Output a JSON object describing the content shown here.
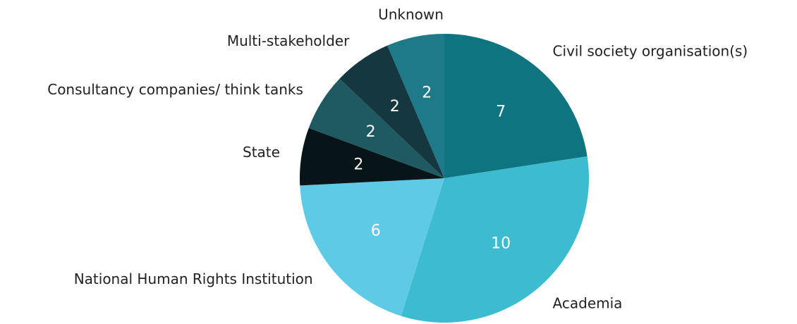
{
  "chart_data": {
    "type": "pie",
    "categories": [
      "Civil society organisation(s)",
      "Academia",
      "National Human Rights Institution",
      "State",
      "Consultancy companies/ think tanks",
      "Multi-stakeholder",
      "Unknown"
    ],
    "values": [
      7,
      10,
      6,
      2,
      2,
      2,
      2
    ],
    "colors": [
      "#0e7480",
      "#3dbccf",
      "#5fcae5",
      "#081518",
      "#1f5a63",
      "#15373f",
      "#1e7a88"
    ]
  }
}
